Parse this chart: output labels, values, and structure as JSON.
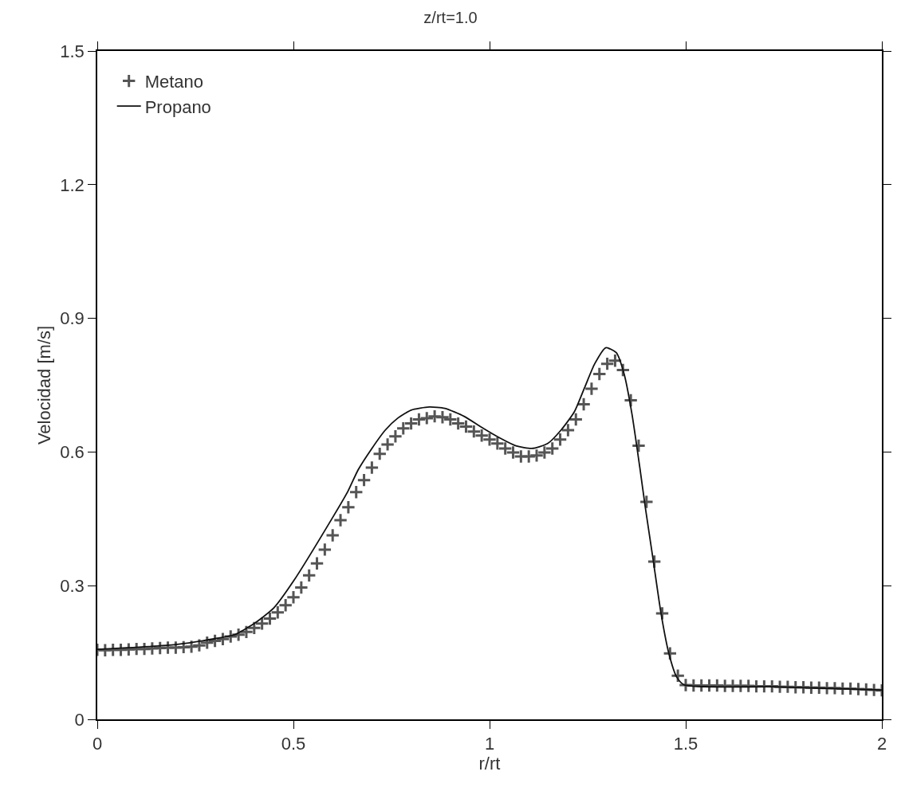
{
  "chart_data": {
    "type": "scatter",
    "title": "z/rt=1.0",
    "xlabel": "r/rt",
    "ylabel": "Velocidad [m/s]",
    "xlim": [
      0,
      2
    ],
    "xticks": [
      0,
      0.5,
      1,
      1.5,
      2
    ],
    "ylim": [
      0,
      1.5
    ],
    "yticks": [
      0,
      0.3,
      0.6,
      0.9,
      1.2,
      1.5
    ],
    "legend": "top left",
    "series": [
      {
        "name": "Metano",
        "marker": "cross",
        "color": "#555555",
        "x": [
          0,
          0.02,
          0.04,
          0.06,
          0.08,
          0.1,
          0.12,
          0.14,
          0.16,
          0.18,
          0.2,
          0.22,
          0.24,
          0.26,
          0.28,
          0.3,
          0.32,
          0.34,
          0.36,
          0.38,
          0.4,
          0.42,
          0.44,
          0.46,
          0.48,
          0.5,
          0.52,
          0.54,
          0.56,
          0.58,
          0.6,
          0.62,
          0.64,
          0.66,
          0.68,
          0.7,
          0.72,
          0.74,
          0.76,
          0.78,
          0.8,
          0.82,
          0.84,
          0.86,
          0.88,
          0.9,
          0.92,
          0.94,
          0.96,
          0.98,
          1.0,
          1.02,
          1.04,
          1.06,
          1.08,
          1.1,
          1.12,
          1.14,
          1.16,
          1.18,
          1.2,
          1.22,
          1.24,
          1.26,
          1.28,
          1.3,
          1.32,
          1.34,
          1.36,
          1.38,
          1.4,
          1.42,
          1.44,
          1.46,
          1.48,
          1.5,
          1.52,
          1.54,
          1.56,
          1.58,
          1.6,
          1.62,
          1.64,
          1.66,
          1.68,
          1.7,
          1.72,
          1.74,
          1.76,
          1.78,
          1.8,
          1.82,
          1.84,
          1.86,
          1.88,
          1.9,
          1.92,
          1.94,
          1.96,
          1.98,
          2.0
        ],
        "values": [
          0.156,
          0.155,
          0.156,
          0.156,
          0.157,
          0.158,
          0.158,
          0.159,
          0.16,
          0.161,
          0.161,
          0.162,
          0.163,
          0.166,
          0.172,
          0.176,
          0.18,
          0.186,
          0.19,
          0.196,
          0.205,
          0.215,
          0.226,
          0.24,
          0.256,
          0.274,
          0.296,
          0.323,
          0.35,
          0.381,
          0.413,
          0.447,
          0.476,
          0.51,
          0.537,
          0.565,
          0.596,
          0.617,
          0.635,
          0.653,
          0.664,
          0.673,
          0.676,
          0.68,
          0.678,
          0.673,
          0.664,
          0.657,
          0.646,
          0.637,
          0.628,
          0.619,
          0.608,
          0.599,
          0.59,
          0.59,
          0.592,
          0.599,
          0.608,
          0.628,
          0.649,
          0.673,
          0.707,
          0.742,
          0.775,
          0.798,
          0.805,
          0.784,
          0.716,
          0.614,
          0.488,
          0.354,
          0.238,
          0.148,
          0.098,
          0.077,
          0.076,
          0.076,
          0.076,
          0.076,
          0.075,
          0.075,
          0.075,
          0.075,
          0.074,
          0.074,
          0.074,
          0.073,
          0.073,
          0.072,
          0.072,
          0.071,
          0.071,
          0.07,
          0.07,
          0.069,
          0.069,
          0.068,
          0.067,
          0.066,
          0.065
        ]
      },
      {
        "name": "Propano",
        "type": "line",
        "line_style": "solid",
        "color": "#111111",
        "x": [
          0,
          0.2,
          0.3,
          0.35,
          0.4,
          0.45,
          0.5,
          0.6,
          0.639,
          0.665,
          0.7,
          0.734,
          0.766,
          0.8,
          0.846,
          0.886,
          0.935,
          0.975,
          1.027,
          1.067,
          1.108,
          1.148,
          1.182,
          1.216,
          1.242,
          1.268,
          1.296,
          1.323,
          1.343,
          1.363,
          1.383,
          1.397,
          1.417,
          1.437,
          1.457,
          1.477,
          1.497,
          1.725,
          2.0
        ],
        "values": [
          0.157,
          0.168,
          0.181,
          0.19,
          0.215,
          0.25,
          0.31,
          0.453,
          0.512,
          0.56,
          0.608,
          0.649,
          0.676,
          0.694,
          0.701,
          0.698,
          0.68,
          0.658,
          0.631,
          0.614,
          0.608,
          0.619,
          0.649,
          0.69,
          0.744,
          0.798,
          0.834,
          0.823,
          0.775,
          0.685,
          0.565,
          0.476,
          0.358,
          0.238,
          0.148,
          0.095,
          0.077,
          0.073,
          0.066
        ]
      }
    ]
  }
}
